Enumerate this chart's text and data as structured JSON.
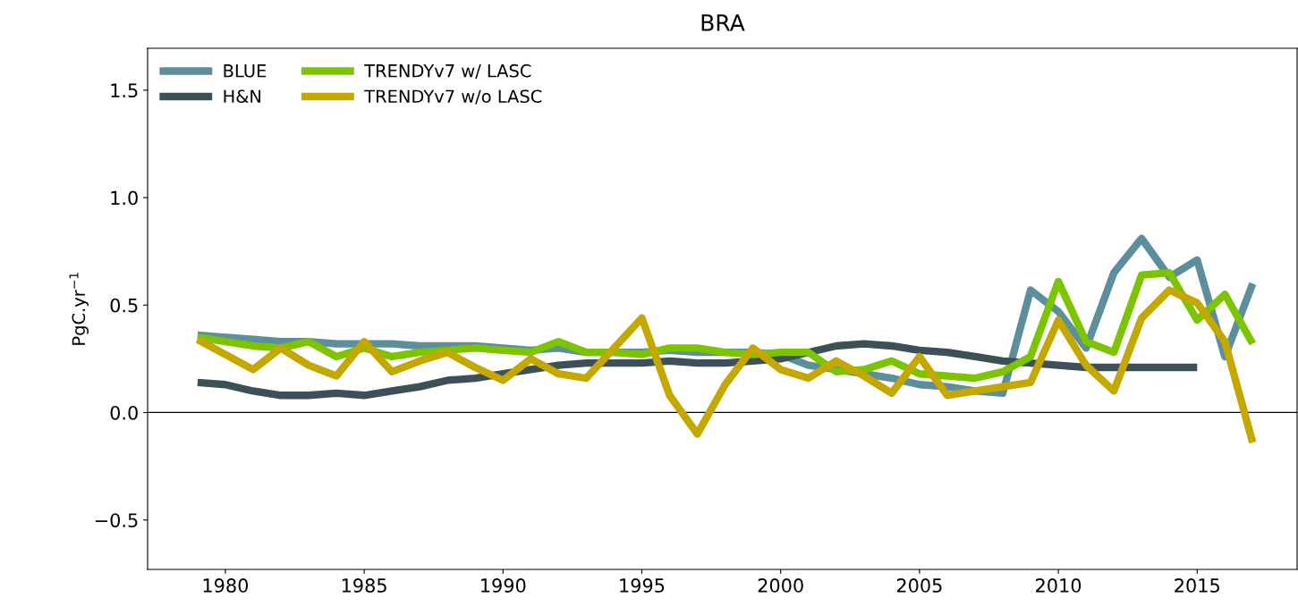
{
  "chart_data": {
    "type": "line",
    "title": "BRA",
    "ylabel": "PgC.yr$^{−1}$",
    "x": [
      1979,
      1980,
      1981,
      1982,
      1983,
      1984,
      1985,
      1986,
      1987,
      1988,
      1989,
      1990,
      1991,
      1992,
      1993,
      1994,
      1995,
      1996,
      1997,
      1998,
      1999,
      2000,
      2001,
      2002,
      2003,
      2004,
      2005,
      2006,
      2007,
      2008,
      2009,
      2010,
      2011,
      2012,
      2013,
      2014,
      2015,
      2016,
      2017
    ],
    "series": [
      {
        "name": "BLUE",
        "color": "#5b8f9b",
        "values": [
          0.36,
          0.35,
          0.34,
          0.33,
          0.33,
          0.32,
          0.32,
          0.32,
          0.31,
          0.31,
          0.31,
          0.3,
          0.29,
          0.3,
          0.28,
          0.28,
          0.28,
          0.29,
          0.28,
          0.28,
          0.28,
          0.27,
          0.22,
          0.2,
          0.18,
          0.16,
          0.13,
          0.12,
          0.1,
          0.09,
          0.57,
          0.47,
          0.3,
          0.65,
          0.81,
          0.63,
          0.71,
          0.26,
          0.6
        ]
      },
      {
        "name": "H&N",
        "color": "#3d5057",
        "values": [
          0.14,
          0.13,
          0.1,
          0.08,
          0.08,
          0.09,
          0.08,
          0.1,
          0.12,
          0.15,
          0.16,
          0.18,
          0.2,
          0.22,
          0.23,
          0.23,
          0.23,
          0.24,
          0.23,
          0.23,
          0.24,
          0.25,
          0.28,
          0.31,
          0.32,
          0.31,
          0.29,
          0.28,
          0.26,
          0.24,
          0.23,
          0.22,
          0.21,
          0.21,
          0.21,
          0.21,
          0.21,
          null,
          null
        ]
      },
      {
        "name": "TRENDYv7 w/ LASC",
        "color": "#7dc400",
        "values": [
          0.35,
          0.33,
          0.31,
          0.3,
          0.33,
          0.26,
          0.3,
          0.26,
          0.28,
          0.29,
          0.3,
          0.29,
          0.28,
          0.33,
          0.28,
          0.28,
          0.27,
          0.3,
          0.3,
          0.28,
          0.27,
          0.28,
          0.28,
          0.19,
          0.2,
          0.24,
          0.18,
          0.17,
          0.16,
          0.19,
          0.26,
          0.61,
          0.33,
          0.28,
          0.64,
          0.65,
          0.43,
          0.55,
          0.32
        ]
      },
      {
        "name": "TRENDYv7 w/o LASC",
        "color": "#c4a800",
        "values": [
          0.34,
          0.27,
          0.2,
          0.3,
          0.22,
          0.17,
          0.33,
          0.19,
          0.24,
          0.28,
          0.21,
          0.15,
          0.25,
          0.18,
          0.16,
          0.3,
          0.44,
          0.08,
          -0.1,
          0.13,
          0.3,
          0.2,
          0.16,
          0.24,
          0.17,
          0.09,
          0.26,
          0.08,
          0.1,
          0.12,
          0.14,
          0.43,
          0.22,
          0.1,
          0.44,
          0.57,
          0.51,
          0.33,
          -0.14
        ]
      }
    ],
    "xlim": [
      1977.2,
      2018.6
    ],
    "xticks": [
      1980,
      1985,
      1990,
      1995,
      2000,
      2005,
      2010,
      2015
    ],
    "ylim": [
      -0.73,
      1.695
    ],
    "yticks": [
      {
        "value": -0.5,
        "label": "−0.5"
      },
      {
        "value": 0,
        "label": "0.0"
      },
      {
        "value": 0.5,
        "label": "0.5"
      },
      {
        "value": 1,
        "label": "1.0"
      },
      {
        "value": 1.5,
        "label": "1.5"
      }
    ],
    "ref_lines": [
      {
        "axis": "y",
        "value": 0,
        "color": "#000000"
      }
    ],
    "legend": "top left",
    "grid": false,
    "marker": "none",
    "line_style": "solid"
  }
}
